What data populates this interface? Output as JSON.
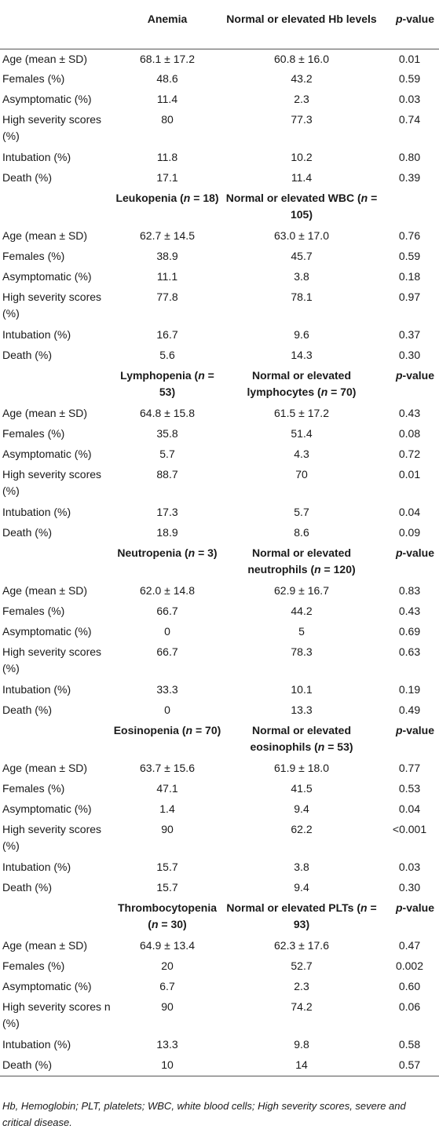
{
  "table": {
    "sections": [
      {
        "header": [
          "",
          "Anemia",
          "Normal or elevated Hb levels",
          "p-value"
        ],
        "rows": [
          [
            "Age (mean ± SD)",
            "68.1 ± 17.2",
            "60.8 ± 16.0",
            "0.01"
          ],
          [
            "Females (%)",
            "48.6",
            "43.2",
            "0.59"
          ],
          [
            "Asymptomatic (%)",
            "11.4",
            "2.3",
            "0.03"
          ],
          [
            "High severity scores (%)",
            "80",
            "77.3",
            "0.74"
          ],
          [
            "Intubation (%)",
            "11.8",
            "10.2",
            "0.80"
          ],
          [
            "Death (%)",
            "17.1",
            "11.4",
            "0.39"
          ]
        ]
      },
      {
        "header": [
          "",
          "Leukopenia (n = 18)",
          "Normal or elevated WBC (n = 105)",
          ""
        ],
        "rows": [
          [
            "Age (mean ± SD)",
            "62.7 ± 14.5",
            "63.0 ± 17.0",
            "0.76"
          ],
          [
            "Females (%)",
            "38.9",
            "45.7",
            "0.59"
          ],
          [
            "Asymptomatic (%)",
            "11.1",
            "3.8",
            "0.18"
          ],
          [
            "High severity scores (%)",
            "77.8",
            "78.1",
            "0.97"
          ],
          [
            "Intubation (%)",
            "16.7",
            "9.6",
            "0.37"
          ],
          [
            "Death (%)",
            "5.6",
            "14.3",
            "0.30"
          ]
        ]
      },
      {
        "header": [
          "",
          "Lymphopenia (n = 53)",
          "Normal or elevated lymphocytes (n = 70)",
          "p-value"
        ],
        "rows": [
          [
            "Age (mean ± SD)",
            "64.8 ± 15.8",
            "61.5 ± 17.2",
            "0.43"
          ],
          [
            "Females (%)",
            "35.8",
            "51.4",
            "0.08"
          ],
          [
            "Asymptomatic (%)",
            "5.7",
            "4.3",
            "0.72"
          ],
          [
            "High severity scores (%)",
            "88.7",
            "70",
            "0.01"
          ],
          [
            "Intubation (%)",
            "17.3",
            "5.7",
            "0.04"
          ],
          [
            "Death (%)",
            "18.9",
            "8.6",
            "0.09"
          ]
        ]
      },
      {
        "header": [
          "",
          "Neutropenia (n = 3)",
          "Normal or elevated neutrophils (n = 120)",
          "p-value"
        ],
        "rows": [
          [
            "Age (mean ± SD)",
            "62.0 ± 14.8",
            "62.9 ± 16.7",
            "0.83"
          ],
          [
            "Females (%)",
            "66.7",
            "44.2",
            "0.43"
          ],
          [
            "Asymptomatic (%)",
            "0",
            "5",
            "0.69"
          ],
          [
            "High severity scores (%)",
            "66.7",
            "78.3",
            "0.63"
          ],
          [
            "Intubation (%)",
            "33.3",
            "10.1",
            "0.19"
          ],
          [
            "Death (%)",
            "0",
            "13.3",
            "0.49"
          ]
        ]
      },
      {
        "header": [
          "",
          "Eosinopenia (n = 70)",
          "Normal or elevated eosinophils (n = 53)",
          "p-value"
        ],
        "rows": [
          [
            "Age (mean ± SD)",
            "63.7 ± 15.6",
            "61.9 ± 18.0",
            "0.77"
          ],
          [
            "Females (%)",
            "47.1",
            "41.5",
            "0.53"
          ],
          [
            "Asymptomatic (%)",
            "1.4",
            "9.4",
            "0.04"
          ],
          [
            "High severity scores (%)",
            "90",
            "62.2",
            "<0.001"
          ],
          [
            "Intubation (%)",
            "15.7",
            "3.8",
            "0.03"
          ],
          [
            "Death (%)",
            "15.7",
            "9.4",
            "0.30"
          ]
        ]
      },
      {
        "header": [
          "",
          "Thrombocytopenia (n = 30)",
          "Normal or elevated PLTs (n = 93)",
          "p-value"
        ],
        "rows": [
          [
            "Age (mean ± SD)",
            "64.9 ± 13.4",
            "62.3 ± 17.6",
            "0.47"
          ],
          [
            "Females (%)",
            "20",
            "52.7",
            "0.002"
          ],
          [
            "Asymptomatic (%)",
            "6.7",
            "2.3",
            "0.60"
          ],
          [
            "High severity scores n (%)",
            "90",
            "74.2",
            "0.06"
          ],
          [
            "Intubation (%)",
            "13.3",
            "9.8",
            "0.58"
          ],
          [
            "Death (%)",
            "10",
            "14",
            "0.57"
          ]
        ]
      }
    ]
  },
  "footnote": "Hb, Hemoglobin; PLT, platelets; WBC, white blood cells; High severity scores, severe and critical disease."
}
